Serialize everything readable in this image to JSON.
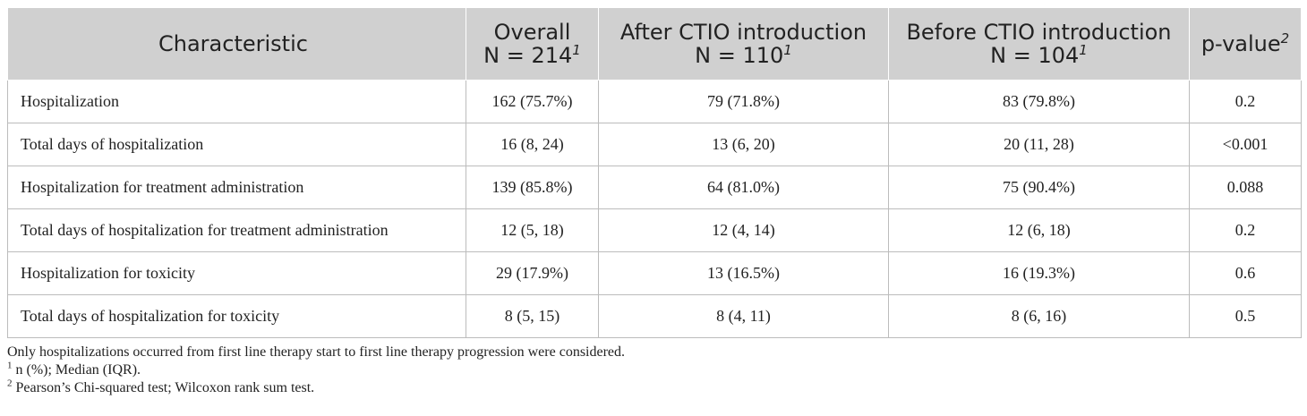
{
  "table": {
    "headers": [
      {
        "line1": "Characteristic",
        "line2": "",
        "sup": ""
      },
      {
        "line1": "Overall",
        "line2": "N = 214",
        "sup": "1"
      },
      {
        "line1": "After CTIO introduction",
        "line2": "N = 110",
        "sup": "1"
      },
      {
        "line1": "Before CTIO introduction",
        "line2": "N = 104",
        "sup": "1"
      },
      {
        "line1": "p-value",
        "line2": "",
        "sup": "2"
      }
    ],
    "rows": [
      {
        "label": "Hospitalization",
        "overall": "162 (75.7%)",
        "after": "79 (71.8%)",
        "before": "83 (79.8%)",
        "p": "0.2"
      },
      {
        "label": "Total days of hospitalization",
        "overall": "16 (8, 24)",
        "after": "13 (6, 20)",
        "before": "20 (11, 28)",
        "p": "<0.001"
      },
      {
        "label": "Hospitalization for treatment administration",
        "overall": "139 (85.8%)",
        "after": "64 (81.0%)",
        "before": "75 (90.4%)",
        "p": "0.088"
      },
      {
        "label": "Total days of hospitalization for treatment administration",
        "overall": "12 (5, 18)",
        "after": "12 (4, 14)",
        "before": "12 (6, 18)",
        "p": "0.2"
      },
      {
        "label": "Hospitalization for toxicity",
        "overall": "29 (17.9%)",
        "after": "13 (16.5%)",
        "before": "16 (19.3%)",
        "p": "0.6"
      },
      {
        "label": "Total days of hospitalization for toxicity",
        "overall": "8 (5, 15)",
        "after": "8 (4, 11)",
        "before": "8 (6, 16)",
        "p": "0.5"
      }
    ]
  },
  "notes": {
    "main": "Only hospitalizations occurred from first line therapy start to first line therapy progression were considered.",
    "fn1_mark": "1",
    "fn1_text": " n (%); Median (IQR).",
    "fn2_mark": "2",
    "fn2_text": " Pearson’s Chi-squared test; Wilcoxon rank sum test."
  }
}
